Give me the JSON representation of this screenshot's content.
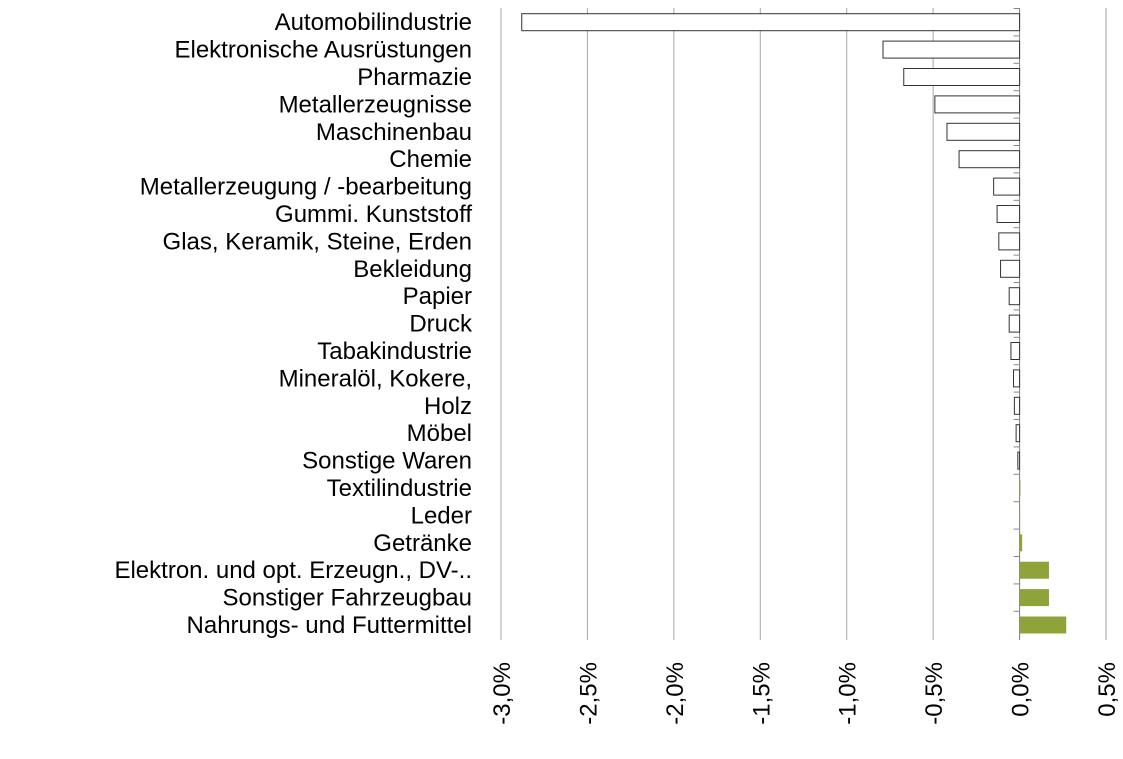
{
  "chart_data": {
    "type": "barh",
    "categories": [
      "Automobilindustrie",
      "Elektronische Ausrüstungen",
      "Pharmazie",
      "Metallerzeugnisse",
      "Maschinenbau",
      "Chemie",
      "Metallerzeugung / -bearbeitung",
      "Gummi. Kunststoff",
      "Glas, Keramik, Steine, Erden",
      "Bekleidung",
      "Papier",
      "Druck",
      "Tabakindustrie",
      "Mineralöl, Kokere,",
      "Holz",
      "Möbel",
      "Sonstige Waren",
      "Textilindustrie",
      "Leder",
      "Getränke",
      "Elektron. und opt. Erzeugn., DV-..",
      "Sonstiger Fahrzeugbau",
      "Nahrungs- und Futtermittel"
    ],
    "values": [
      -2.88,
      -0.79,
      -0.67,
      -0.49,
      -0.42,
      -0.35,
      -0.15,
      -0.13,
      -0.12,
      -0.11,
      -0.06,
      -0.06,
      -0.05,
      -0.035,
      -0.03,
      -0.02,
      -0.01,
      0.005,
      0.003,
      0.015,
      0.17,
      0.17,
      0.27
    ],
    "bar_colors": {
      "negative": "#ffffff",
      "positive": "#8fa33b"
    },
    "edge_color": "#333333",
    "xlim": [
      -3,
      0.5
    ],
    "xticks": [
      {
        "value": -3,
        "label": "-3,0%"
      },
      {
        "value": -2.5,
        "label": "-2,5%"
      },
      {
        "value": -2,
        "label": "-2,0%"
      },
      {
        "value": -1.5,
        "label": "-1,5%"
      },
      {
        "value": -1,
        "label": "-1,0%"
      },
      {
        "value": -0.5,
        "label": "-0,5%"
      },
      {
        "value": 0,
        "label": "0,0%"
      },
      {
        "value": 0.5,
        "label": "0,5%"
      }
    ],
    "grid": true
  }
}
